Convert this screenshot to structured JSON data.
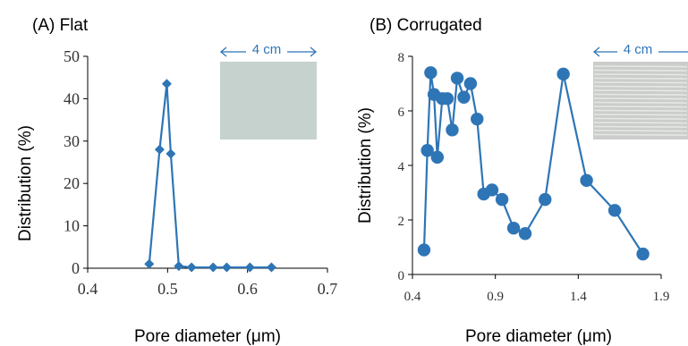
{
  "colors": {
    "flat_series": "#2E75B6",
    "corrugated_series": "#2E75B6",
    "axis": "#000000",
    "scale_bar": "#2E75B6",
    "flat_photo": "#C5D2CD",
    "corrugated_photo": "#CBCDCB"
  },
  "chart_data": [
    {
      "type": "line",
      "panel_title": "(A) Flat",
      "xlabel": "Pore diameter (μm)",
      "ylabel": "Distribution (%)",
      "xlim": [
        0.4,
        0.7
      ],
      "ylim": [
        0,
        50
      ],
      "x_ticks": [
        "0.4",
        "0.5",
        "0.6",
        "0.7"
      ],
      "y_ticks": [
        "0",
        "10",
        "20",
        "30",
        "40",
        "50"
      ],
      "marker": "diamond",
      "grid": false,
      "inset": {
        "label": "4 cm"
      },
      "series": [
        {
          "x": [
            0.477,
            0.49,
            0.499,
            0.504,
            0.514,
            0.53,
            0.557,
            0.574,
            0.603,
            0.63
          ],
          "y": [
            1.0,
            28.0,
            43.5,
            27.0,
            0.5,
            0.2,
            0.2,
            0.2,
            0.2,
            0.2
          ]
        }
      ]
    },
    {
      "type": "line",
      "panel_title": "(B) Corrugated",
      "xlabel": "Pore diameter (μm)",
      "ylabel": "Distribution (%)",
      "xlim": [
        0.4,
        1.9
      ],
      "ylim": [
        0,
        8
      ],
      "x_ticks": [
        "0.4",
        "0.9",
        "1.4",
        "1.9"
      ],
      "y_ticks": [
        "0",
        "2",
        "4",
        "6",
        "8"
      ],
      "marker": "circle",
      "grid": false,
      "inset": {
        "label": "4 cm"
      },
      "series": [
        {
          "x": [
            0.47,
            0.49,
            0.51,
            0.53,
            0.55,
            0.58,
            0.61,
            0.64,
            0.67,
            0.71,
            0.75,
            0.79,
            0.83,
            0.88,
            0.94,
            1.01,
            1.08,
            1.2,
            1.31,
            1.45,
            1.62,
            1.79
          ],
          "y": [
            0.9,
            4.55,
            7.4,
            6.6,
            4.3,
            6.45,
            6.45,
            5.3,
            7.2,
            6.5,
            7.0,
            5.7,
            2.95,
            3.1,
            2.75,
            1.7,
            1.5,
            2.75,
            7.35,
            3.45,
            2.35,
            0.75
          ]
        }
      ]
    }
  ]
}
